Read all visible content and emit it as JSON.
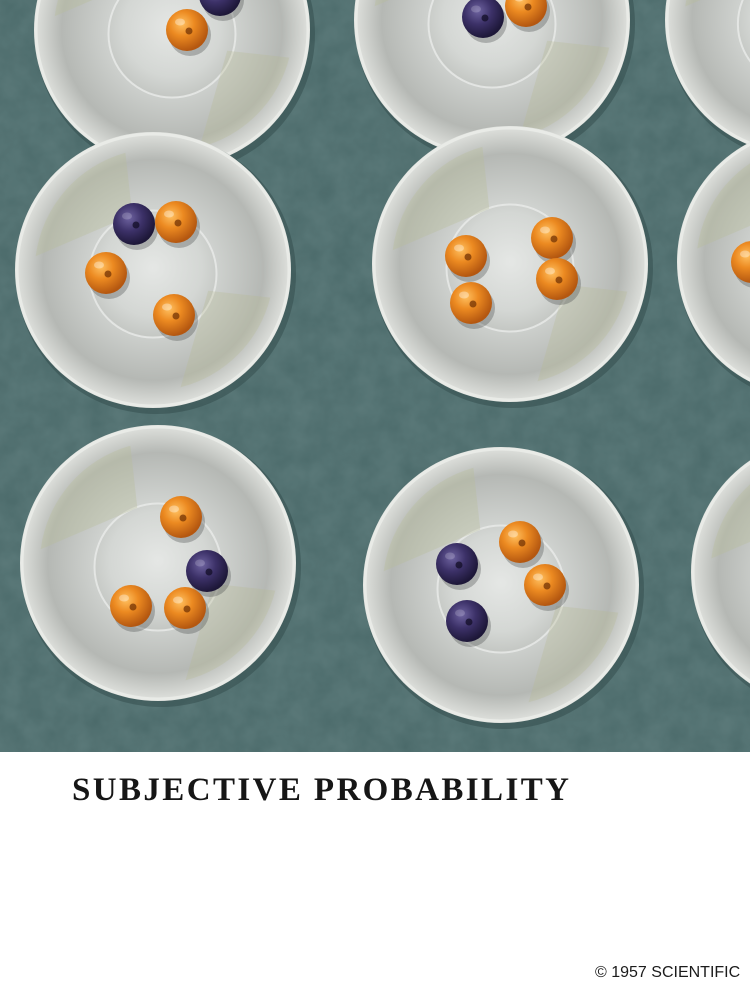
{
  "title": "SUBJECTIVE PROBABILITY",
  "copyright": "© 1957 SCIENTIFIC",
  "illustration": {
    "subject": "bowls-of-balls",
    "colors": {
      "background": "#4a6b6b",
      "bowl_rim": "#e9ebe7",
      "bowl_inner": "#c9ccc8",
      "orange_ball": "#e8861f",
      "purple_ball": "#3a2f66"
    },
    "bowls": [
      {
        "orange": 1,
        "purple": 1
      },
      {
        "orange": 1,
        "purple": 1
      },
      {
        "orange": 0,
        "purple": 0
      },
      {
        "orange": 3,
        "purple": 1
      },
      {
        "orange": 4,
        "purple": 0
      },
      {
        "orange": 1,
        "purple": 0
      },
      {
        "orange": 3,
        "purple": 1
      },
      {
        "orange": 2,
        "purple": 2
      },
      {
        "orange": 0,
        "purple": 0
      }
    ]
  }
}
